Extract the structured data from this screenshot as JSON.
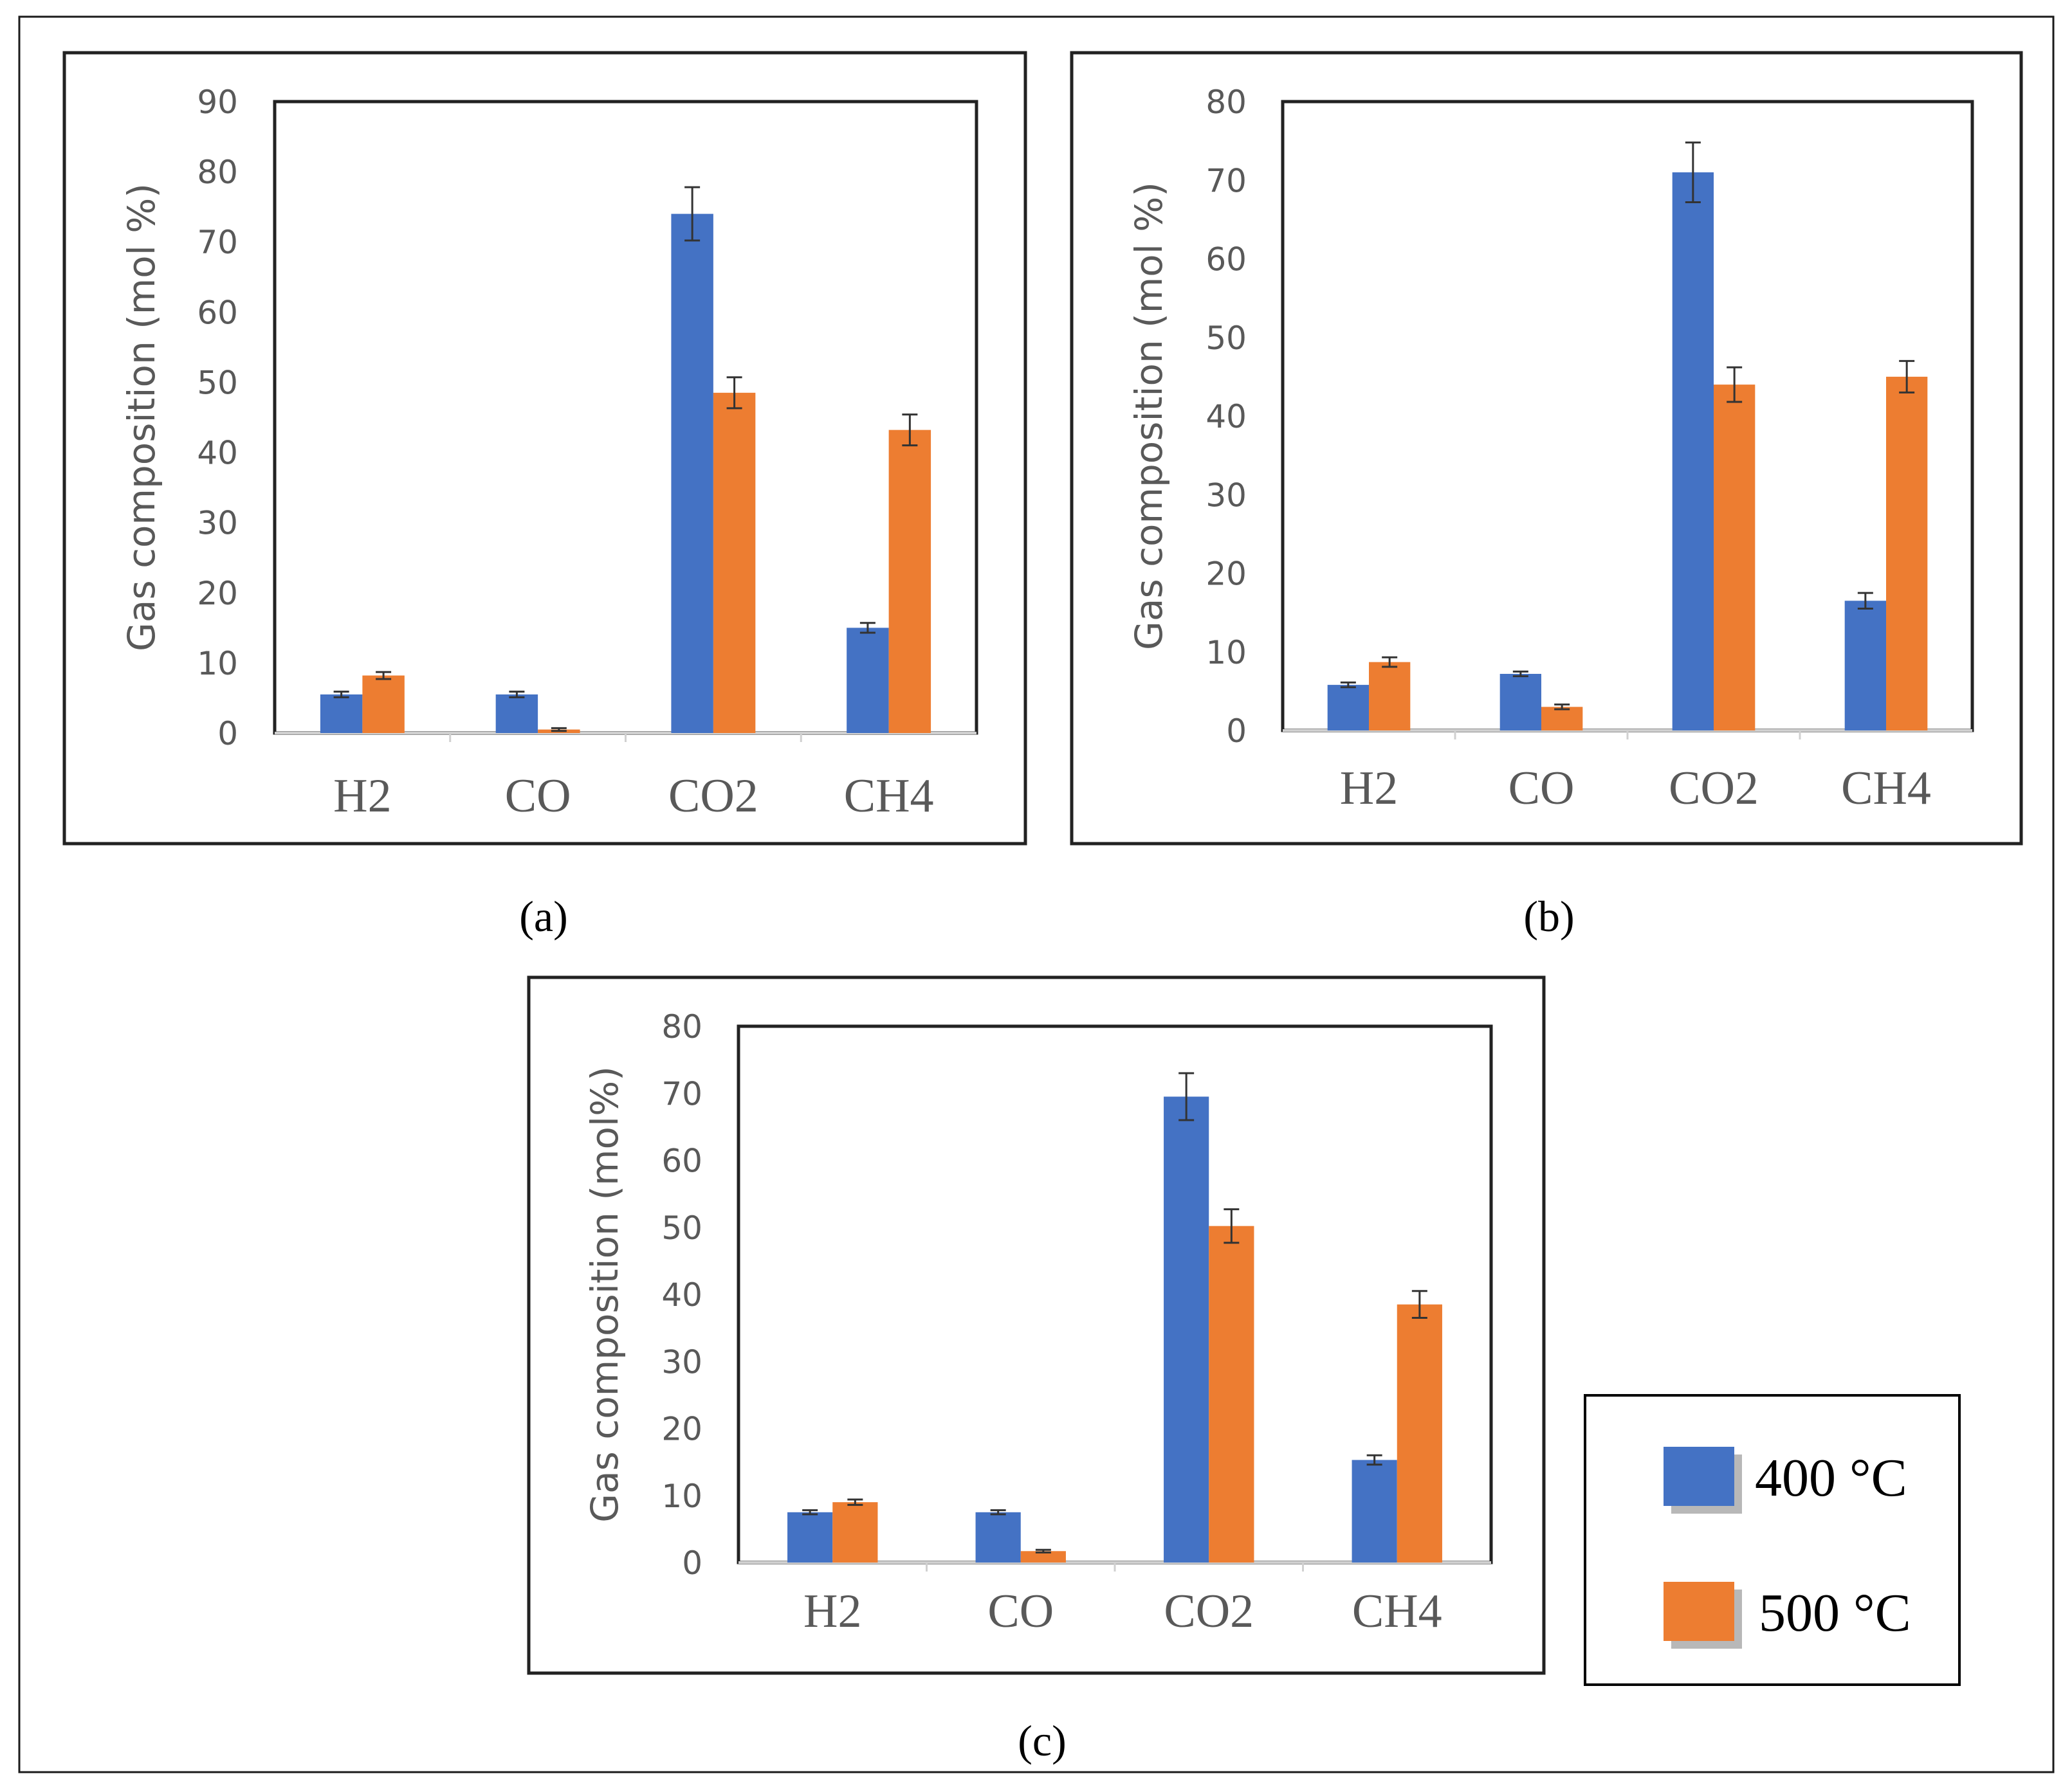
{
  "legend": {
    "series_400": "400 °C",
    "series_500": "500 °C",
    "colors": {
      "series_400": "#4472C4",
      "series_500": "#ED7D31"
    }
  },
  "chart_data": [
    {
      "type": "bar",
      "panel_label": "(a)",
      "ylabel": "Gas composition (mol %)",
      "ylim": [
        0,
        90
      ],
      "yticks": [
        "0",
        "10",
        "20",
        "30",
        "40",
        "50",
        "60",
        "70",
        "80",
        "90"
      ],
      "categories": [
        {
          "base": "H",
          "sub": "2"
        },
        {
          "base": "CO",
          "sub": ""
        },
        {
          "base": "CO",
          "sub": "2"
        },
        {
          "base": "CH",
          "sub": "4"
        }
      ],
      "series": [
        {
          "name": "400 °C",
          "values": [
            5.5,
            5.5,
            74,
            15
          ],
          "errors": [
            0.4,
            0.4,
            3.8,
            0.7
          ]
        },
        {
          "name": "500 °C",
          "values": [
            8.2,
            0.5,
            48.5,
            43.2
          ],
          "errors": [
            0.5,
            0.2,
            2.2,
            2.2
          ]
        }
      ]
    },
    {
      "type": "bar",
      "panel_label": "(b)",
      "ylabel": "Gas composition (mol %)",
      "ylim": [
        0,
        80
      ],
      "yticks": [
        "0",
        "10",
        "20",
        "30",
        "40",
        "50",
        "60",
        "70",
        "80"
      ],
      "categories": [
        {
          "base": "H",
          "sub": "2"
        },
        {
          "base": "CO",
          "sub": ""
        },
        {
          "base": "CO",
          "sub": "2"
        },
        {
          "base": "CH",
          "sub": "4"
        }
      ],
      "series": [
        {
          "name": "400 °C",
          "values": [
            5.8,
            7.2,
            71,
            16.5
          ],
          "errors": [
            0.3,
            0.3,
            3.8,
            1.0
          ]
        },
        {
          "name": "500 °C",
          "values": [
            8.7,
            3.0,
            44,
            45
          ],
          "errors": [
            0.6,
            0.3,
            2.2,
            2.0
          ]
        }
      ]
    },
    {
      "type": "bar",
      "panel_label": "(c)",
      "ylabel": "Gas composition (mol%)",
      "ylim": [
        0,
        80
      ],
      "yticks": [
        "0",
        "10",
        "20",
        "30",
        "40",
        "50",
        "60",
        "70",
        "80"
      ],
      "categories": [
        {
          "base": "H",
          "sub": "2"
        },
        {
          "base": "CO",
          "sub": ""
        },
        {
          "base": "CO",
          "sub": "2"
        },
        {
          "base": "CH",
          "sub": "4"
        }
      ],
      "series": [
        {
          "name": "400 °C",
          "values": [
            7.5,
            7.5,
            69.5,
            15.3
          ],
          "errors": [
            0.3,
            0.3,
            3.5,
            0.7
          ]
        },
        {
          "name": "500 °C",
          "values": [
            9.0,
            1.7,
            50.2,
            38.5
          ],
          "errors": [
            0.4,
            0.2,
            2.5,
            2.0
          ]
        }
      ]
    }
  ]
}
